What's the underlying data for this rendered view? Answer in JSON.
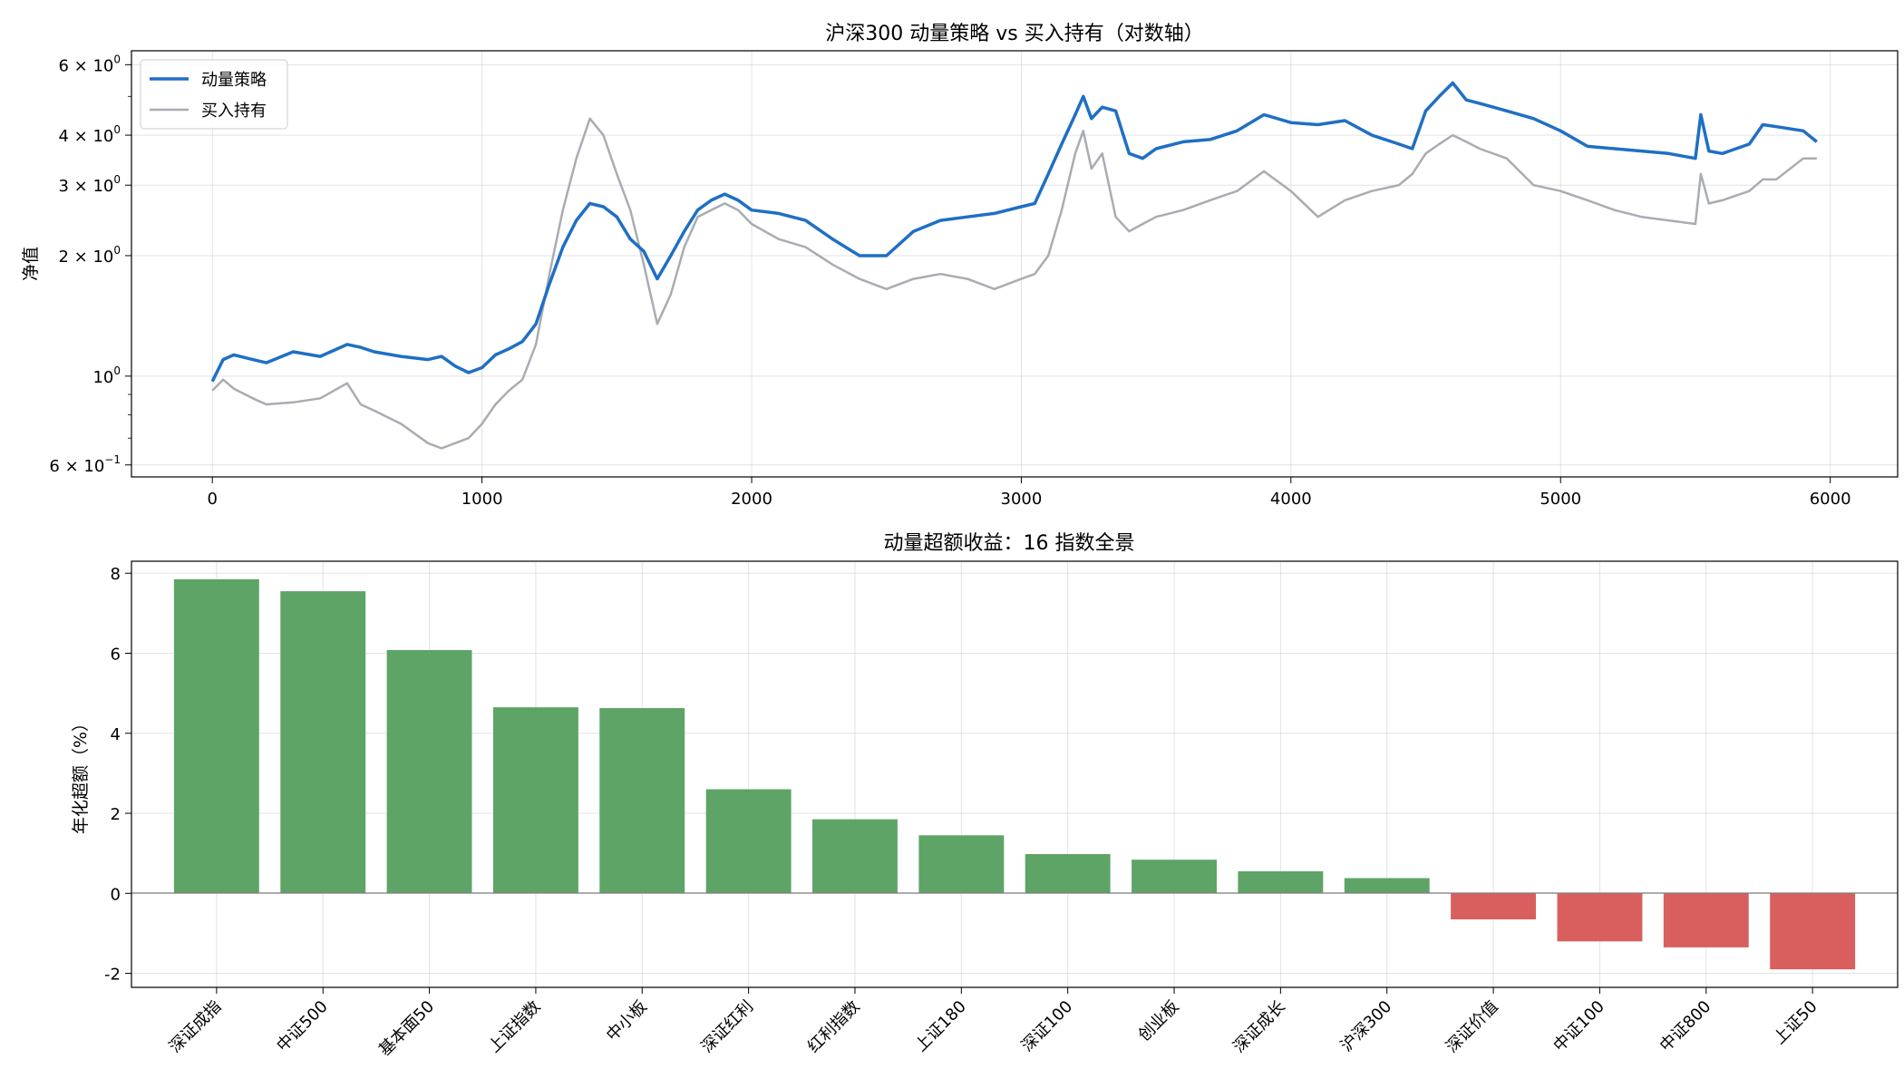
{
  "chart_data": [
    {
      "type": "line",
      "title": "沪深300 动量策略 vs 买入持有（对数轴）",
      "xlabel": "",
      "ylabel": "净值",
      "yscale": "log",
      "xlim": [
        -300,
        6250
      ],
      "ylim": [
        0.56,
        6.5
      ],
      "grid": true,
      "legend_position": "top-left",
      "x_ticks": [
        0,
        1000,
        2000,
        3000,
        4000,
        5000,
        6000
      ],
      "x_tick_labels": [
        "0",
        "1000",
        "2000",
        "3000",
        "4000",
        "5000",
        "6000"
      ],
      "y_ticks": [
        0.6,
        1,
        2,
        3,
        4,
        6
      ],
      "y_tick_labels": [
        {
          "base": "6 × 10",
          "exp": "−1"
        },
        {
          "base": "10",
          "exp": "0"
        },
        {
          "base": "2 × 10",
          "exp": "0"
        },
        {
          "base": "3 × 10",
          "exp": "0"
        },
        {
          "base": "4 × 10",
          "exp": "0"
        },
        {
          "base": "6 × 10",
          "exp": "0"
        }
      ],
      "series": [
        {
          "name": "动量策略",
          "color": "#1f6fc4",
          "x": [
            0,
            40,
            80,
            150,
            200,
            300,
            400,
            500,
            550,
            600,
            700,
            800,
            850,
            900,
            950,
            1000,
            1050,
            1100,
            1150,
            1200,
            1250,
            1300,
            1350,
            1400,
            1450,
            1500,
            1550,
            1600,
            1650,
            1700,
            1750,
            1800,
            1850,
            1900,
            1950,
            2000,
            2100,
            2200,
            2300,
            2400,
            2500,
            2600,
            2700,
            2800,
            2900,
            3000,
            3050,
            3100,
            3150,
            3200,
            3230,
            3260,
            3300,
            3350,
            3400,
            3450,
            3500,
            3600,
            3700,
            3800,
            3900,
            4000,
            4100,
            4200,
            4300,
            4400,
            4450,
            4500,
            4550,
            4600,
            4650,
            4700,
            4800,
            4900,
            5000,
            5100,
            5200,
            5300,
            5400,
            5500,
            5520,
            5550,
            5600,
            5700,
            5750,
            5800,
            5900,
            5950
          ],
          "y": [
            0.97,
            1.1,
            1.13,
            1.1,
            1.08,
            1.15,
            1.12,
            1.2,
            1.18,
            1.15,
            1.12,
            1.1,
            1.12,
            1.06,
            1.02,
            1.05,
            1.13,
            1.17,
            1.22,
            1.35,
            1.7,
            2.1,
            2.45,
            2.7,
            2.65,
            2.5,
            2.2,
            2.05,
            1.75,
            2.0,
            2.3,
            2.6,
            2.75,
            2.85,
            2.75,
            2.6,
            2.55,
            2.45,
            2.2,
            2.0,
            2.0,
            2.3,
            2.45,
            2.5,
            2.55,
            2.65,
            2.7,
            3.2,
            3.8,
            4.5,
            5.0,
            4.4,
            4.7,
            4.6,
            3.6,
            3.5,
            3.7,
            3.85,
            3.9,
            4.1,
            4.5,
            4.3,
            4.25,
            4.35,
            4.0,
            3.8,
            3.7,
            4.6,
            5.0,
            5.4,
            4.9,
            4.8,
            4.6,
            4.4,
            4.1,
            3.75,
            3.7,
            3.65,
            3.6,
            3.5,
            4.5,
            3.65,
            3.6,
            3.8,
            4.25,
            4.2,
            4.1,
            3.85
          ]
        },
        {
          "name": "买入持有",
          "color": "#a9acb2",
          "x": [
            0,
            40,
            80,
            150,
            200,
            300,
            400,
            500,
            550,
            600,
            700,
            800,
            850,
            900,
            950,
            1000,
            1050,
            1100,
            1150,
            1200,
            1250,
            1300,
            1350,
            1400,
            1450,
            1500,
            1550,
            1600,
            1650,
            1700,
            1750,
            1800,
            1850,
            1900,
            1950,
            2000,
            2100,
            2200,
            2300,
            2400,
            2500,
            2600,
            2700,
            2800,
            2900,
            3000,
            3050,
            3100,
            3150,
            3200,
            3230,
            3260,
            3300,
            3350,
            3400,
            3450,
            3500,
            3600,
            3700,
            3800,
            3900,
            4000,
            4100,
            4200,
            4300,
            4400,
            4450,
            4500,
            4550,
            4600,
            4650,
            4700,
            4800,
            4900,
            5000,
            5100,
            5200,
            5300,
            5400,
            5500,
            5520,
            5550,
            5600,
            5700,
            5750,
            5800,
            5900,
            5950
          ],
          "y": [
            0.92,
            0.98,
            0.93,
            0.88,
            0.85,
            0.86,
            0.88,
            0.96,
            0.85,
            0.82,
            0.76,
            0.68,
            0.66,
            0.68,
            0.7,
            0.76,
            0.85,
            0.92,
            0.98,
            1.2,
            1.8,
            2.6,
            3.5,
            4.4,
            4.0,
            3.2,
            2.6,
            1.9,
            1.35,
            1.6,
            2.1,
            2.5,
            2.6,
            2.7,
            2.6,
            2.4,
            2.2,
            2.1,
            1.9,
            1.75,
            1.65,
            1.75,
            1.8,
            1.75,
            1.65,
            1.75,
            1.8,
            2.0,
            2.6,
            3.6,
            4.1,
            3.3,
            3.6,
            2.5,
            2.3,
            2.4,
            2.5,
            2.6,
            2.75,
            2.9,
            3.25,
            2.9,
            2.5,
            2.75,
            2.9,
            3.0,
            3.2,
            3.6,
            3.8,
            4.0,
            3.85,
            3.7,
            3.5,
            3.0,
            2.9,
            2.75,
            2.6,
            2.5,
            2.45,
            2.4,
            3.2,
            2.7,
            2.75,
            2.9,
            3.1,
            3.1,
            3.5,
            3.5
          ]
        }
      ]
    },
    {
      "type": "bar",
      "title": "动量超额收益：16 指数全景",
      "xlabel": "",
      "ylabel": "年化超额（%）",
      "ylim": [
        -2.35,
        8.3
      ],
      "grid": true,
      "y_ticks": [
        -2,
        0,
        2,
        4,
        6,
        8
      ],
      "y_tick_labels": [
        "-2",
        "0",
        "2",
        "4",
        "6",
        "8"
      ],
      "positive_color": "#5ea467",
      "negative_color": "#d95f5f",
      "categories": [
        "深证成指",
        "中证500",
        "基本面50",
        "上证指数",
        "中小板",
        "深证红利",
        "红利指数",
        "上证180",
        "深证100",
        "创业板",
        "深证成长",
        "沪深300",
        "深证价值",
        "中证100",
        "中证800",
        "上证50"
      ],
      "values": [
        7.85,
        7.55,
        6.08,
        4.65,
        4.63,
        2.6,
        1.85,
        1.45,
        0.98,
        0.84,
        0.55,
        0.38,
        -0.65,
        -1.2,
        -1.35,
        -1.9
      ]
    }
  ]
}
